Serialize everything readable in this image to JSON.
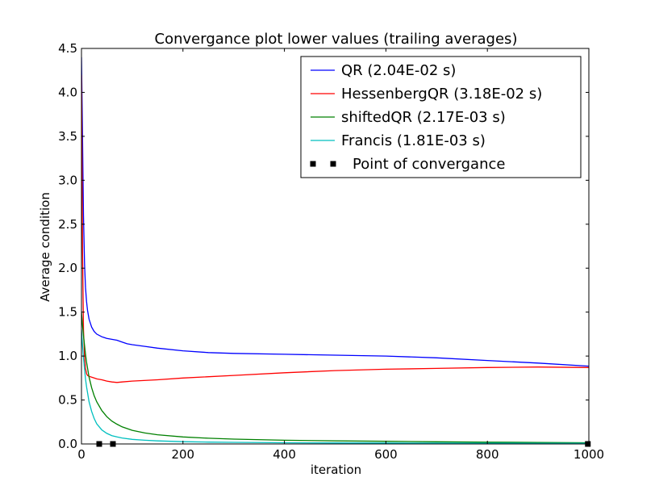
{
  "chart_data": {
    "type": "line",
    "title": "Convergance plot lower values (trailing averages)",
    "xlabel": "iteration",
    "ylabel": "Average condition",
    "xlim": [
      0,
      1000
    ],
    "ylim": [
      0,
      4.5
    ],
    "xticks": [
      0,
      200,
      400,
      600,
      800,
      1000
    ],
    "yticks": [
      0.0,
      0.5,
      1.0,
      1.5,
      2.0,
      2.5,
      3.0,
      3.5,
      4.0,
      4.5
    ],
    "grid": false,
    "legend_position": "top-right",
    "series": [
      {
        "name": "QR (2.04E-02 s)",
        "color": "#0000ff",
        "x": [
          0,
          2,
          4,
          6,
          8,
          10,
          12,
          15,
          20,
          25,
          30,
          40,
          50,
          60,
          70,
          80,
          90,
          100,
          125,
          150,
          200,
          250,
          300,
          400,
          500,
          600,
          700,
          800,
          900,
          1000
        ],
        "y": [
          4.4,
          3.5,
          2.6,
          2.05,
          1.78,
          1.62,
          1.52,
          1.42,
          1.33,
          1.28,
          1.25,
          1.22,
          1.2,
          1.19,
          1.18,
          1.16,
          1.14,
          1.13,
          1.11,
          1.09,
          1.06,
          1.04,
          1.03,
          1.02,
          1.01,
          1.0,
          0.98,
          0.95,
          0.92,
          0.885
        ]
      },
      {
        "name": "HessenbergQR (3.18E-02 s)",
        "color": "#ff0000",
        "x": [
          0,
          2,
          4,
          6,
          8,
          10,
          12,
          15,
          20,
          25,
          30,
          40,
          50,
          60,
          70,
          80,
          100,
          150,
          200,
          300,
          400,
          500,
          600,
          700,
          800,
          900,
          1000
        ],
        "y": [
          4.2,
          2.2,
          1.3,
          1.0,
          0.86,
          0.8,
          0.78,
          0.77,
          0.76,
          0.75,
          0.74,
          0.73,
          0.715,
          0.705,
          0.7,
          0.705,
          0.715,
          0.73,
          0.75,
          0.78,
          0.81,
          0.835,
          0.85,
          0.86,
          0.87,
          0.875,
          0.87
        ]
      },
      {
        "name": "shiftedQR (2.17E-03 s)",
        "color": "#008000",
        "x": [
          0,
          2,
          4,
          6,
          8,
          10,
          15,
          20,
          25,
          30,
          40,
          50,
          60,
          70,
          80,
          100,
          125,
          150,
          200,
          250,
          300,
          400,
          500,
          600,
          700,
          800,
          900,
          1000
        ],
        "y": [
          1.5,
          1.35,
          1.23,
          1.12,
          1.02,
          0.93,
          0.76,
          0.64,
          0.55,
          0.48,
          0.38,
          0.31,
          0.26,
          0.225,
          0.195,
          0.155,
          0.125,
          0.105,
          0.08,
          0.065,
          0.055,
          0.042,
          0.035,
          0.03,
          0.025,
          0.02,
          0.017,
          0.014
        ]
      },
      {
        "name": "Francis (1.81E-03 s)",
        "color": "#00bfbf",
        "x": [
          0,
          2,
          4,
          6,
          8,
          10,
          15,
          20,
          25,
          30,
          40,
          50,
          60,
          70,
          80,
          100,
          125,
          150,
          200,
          250,
          300,
          400,
          500,
          600,
          700,
          800,
          900,
          1000
        ],
        "y": [
          1.3,
          1.12,
          0.98,
          0.85,
          0.74,
          0.65,
          0.48,
          0.37,
          0.29,
          0.23,
          0.16,
          0.12,
          0.095,
          0.08,
          0.068,
          0.052,
          0.042,
          0.035,
          0.026,
          0.021,
          0.018,
          0.014,
          0.012,
          0.011,
          0.01,
          0.009,
          0.008,
          0.007
        ]
      }
    ],
    "markers": {
      "name": "Point of convergance",
      "color": "#000000",
      "points": [
        [
          35,
          0.0
        ],
        [
          62,
          0.0
        ],
        [
          998,
          0.0
        ]
      ]
    }
  }
}
